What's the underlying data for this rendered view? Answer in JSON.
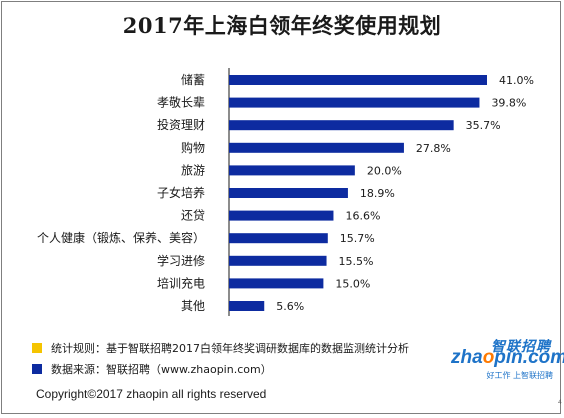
{
  "chart_data": {
    "type": "bar",
    "orientation": "horizontal",
    "title": "2017年上海白领年终奖使用规划",
    "categories": [
      "储蓄",
      "孝敬长辈",
      "投资理财",
      "购物",
      "旅游",
      "子女培养",
      "还贷",
      "个人健康（锻炼、保养、美容）",
      "学习进修",
      "培训充电",
      "其他"
    ],
    "values": [
      41.0,
      39.8,
      35.7,
      27.8,
      20.0,
      18.9,
      16.6,
      15.7,
      15.5,
      15.0,
      5.6
    ],
    "value_labels": [
      "41.0%",
      "39.8%",
      "35.7%",
      "27.8%",
      "20.0%",
      "18.9%",
      "16.6%",
      "15.7%",
      "15.5%",
      "15.0%",
      "5.6%"
    ],
    "unit": "%",
    "xlim": [
      0,
      41.0
    ],
    "bar_color": "#0d2ba0",
    "grid": false,
    "legend": "none"
  },
  "notes": [
    {
      "label": "统计规则：基于智联招聘2017白领年终奖调研数据库的数据监测统计分析",
      "color": "#f5c400"
    },
    {
      "label": "数据来源：智联招聘（www.zhaopin.com）",
      "color": "#0d2ba0"
    }
  ],
  "logo": {
    "cn": "智联招聘",
    "en_prefix": "zha",
    "en_o": "o",
    "en_suffix": "pin.com",
    "slogan": "好工作 上智联招聘"
  },
  "copyright": "Copyright©2017 zhaopin all rights reserved",
  "edge_mark": "4"
}
